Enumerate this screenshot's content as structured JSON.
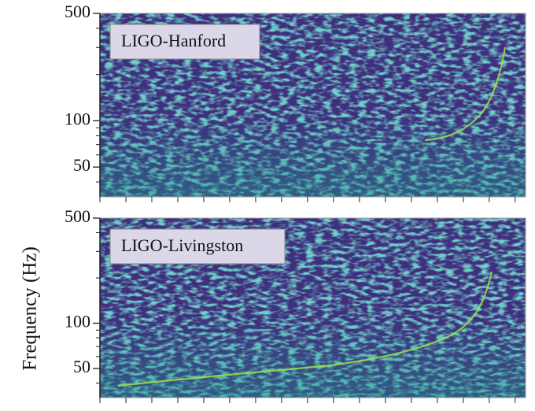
{
  "chart_data": [
    {
      "type": "spectrogram",
      "label": "LIGO-Hanford",
      "log_y": true,
      "ylim": [
        32,
        500
      ],
      "yticks": [
        50,
        100,
        500
      ],
      "yminor_ticks": [
        40,
        60,
        70,
        80,
        90,
        200,
        300,
        400
      ]
    },
    {
      "type": "spectrogram",
      "label": "LIGO-Livingston",
      "ylabel": "Frequency (Hz)",
      "log_y": true,
      "ylim": [
        32,
        500
      ],
      "yticks": [
        50,
        100,
        500
      ],
      "yminor_ticks": [
        40,
        60,
        70,
        80,
        90,
        200,
        300,
        400
      ]
    }
  ]
}
